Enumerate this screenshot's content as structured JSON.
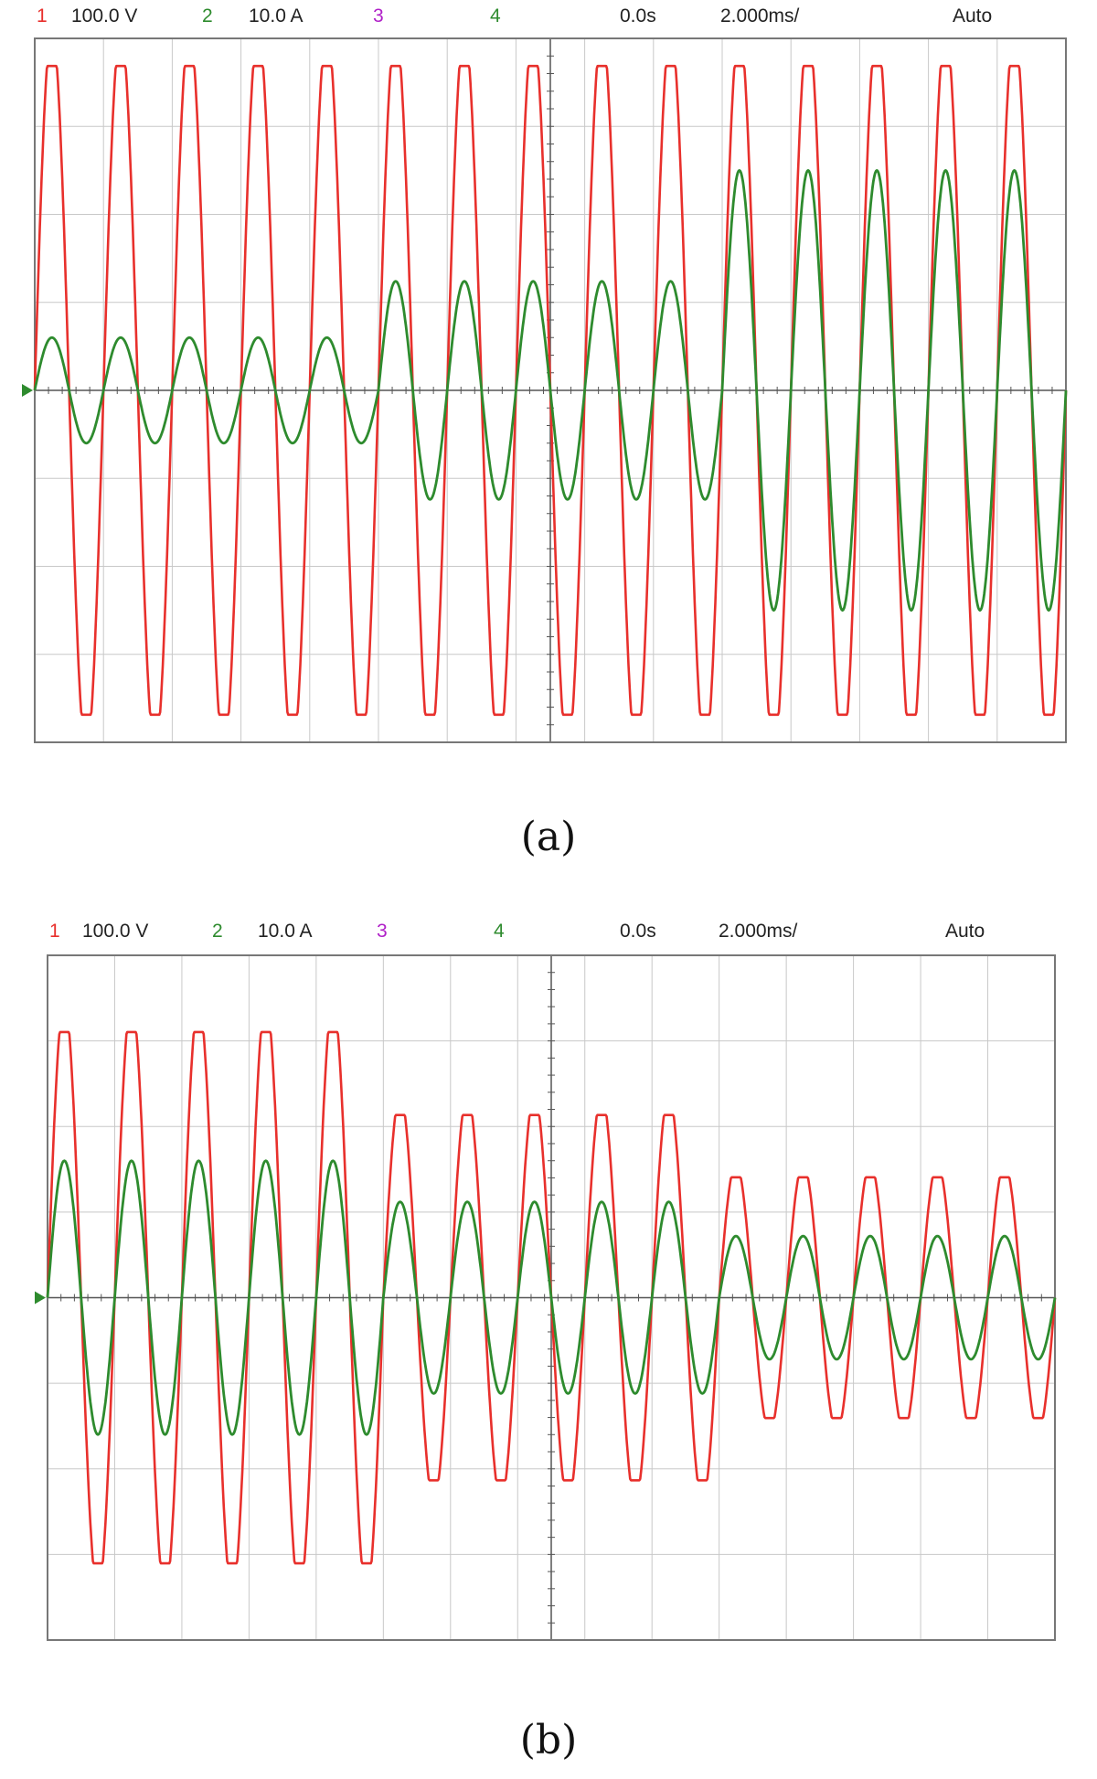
{
  "panels": [
    {
      "caption": "(a)",
      "header": {
        "ch1_num": "1",
        "ch1_scale": "100.0 V",
        "ch2_num": "2",
        "ch2_scale": "10.0 A",
        "ch3_num": "3",
        "ch4_num": "4",
        "time_offset": "0.0s",
        "timebase": "2.000ms/",
        "mode": "Auto"
      }
    },
    {
      "caption": "(b)",
      "header": {
        "ch1_num": "1",
        "ch1_scale": "100.0 V",
        "ch2_num": "2",
        "ch2_scale": "10.0 A",
        "ch3_num": "3",
        "ch4_num": "4",
        "time_offset": "0.0s",
        "timebase": "2.000ms/",
        "mode": "Auto"
      }
    }
  ],
  "colors": {
    "ch1": "#e8302c",
    "ch2": "#2e8b2e",
    "ch3": "#b020c8",
    "ch4": "#2e8b2e",
    "grid": "#c8c8c8",
    "frame": "#777777"
  },
  "chart_data": [
    {
      "type": "line",
      "grid": true,
      "divisions": {
        "x": 15,
        "y": 8
      },
      "series": [
        {
          "channel": "ch1",
          "unit": "V",
          "div_scale": 100,
          "cycles": 15,
          "segments": [
            {
              "cycles": 15,
              "amplitude_div": 3.8
            }
          ]
        },
        {
          "channel": "ch2",
          "unit": "A",
          "div_scale": 10,
          "cycles": 15,
          "segments": [
            {
              "cycles": 5,
              "amplitude_div": 0.6
            },
            {
              "cycles": 5,
              "amplitude_div": 1.24
            },
            {
              "cycles": 5,
              "amplitude_div": 2.5
            }
          ]
        }
      ]
    },
    {
      "type": "line",
      "grid": true,
      "divisions": {
        "x": 15,
        "y": 8
      },
      "series": [
        {
          "channel": "ch1",
          "unit": "V",
          "div_scale": 100,
          "cycles": 15,
          "segments": [
            {
              "cycles": 5,
              "amplitude_div": 3.2
            },
            {
              "cycles": 5,
              "amplitude_div": 2.2
            },
            {
              "cycles": 5,
              "amplitude_div": 1.45
            }
          ]
        },
        {
          "channel": "ch2",
          "unit": "A",
          "div_scale": 10,
          "cycles": 15,
          "segments": [
            {
              "cycles": 5,
              "amplitude_div": 1.6
            },
            {
              "cycles": 5,
              "amplitude_div": 1.12
            },
            {
              "cycles": 5,
              "amplitude_div": 0.72
            }
          ]
        }
      ]
    }
  ]
}
